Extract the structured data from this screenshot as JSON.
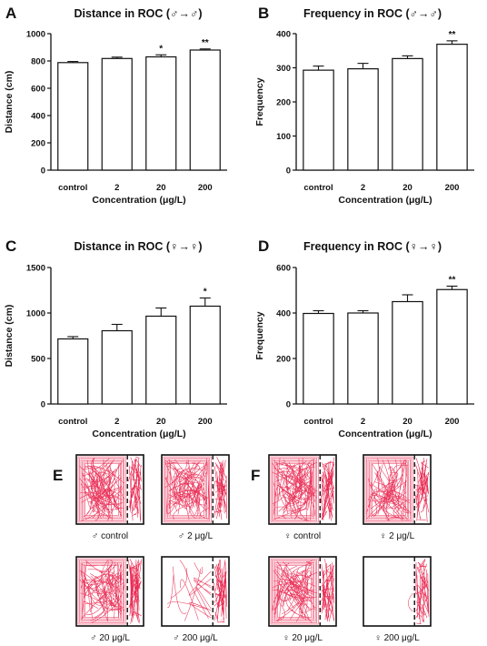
{
  "figure": {
    "panel_labels": [
      "A",
      "B",
      "C",
      "D",
      "E",
      "F"
    ]
  },
  "chart_data": [
    {
      "panel": "A",
      "type": "bar",
      "title": "Distance in ROC (♂→♂)",
      "xlabel": "Concentration (μg/L)",
      "ylabel": "Distance (cm)",
      "categories": [
        "control",
        "2",
        "20",
        "200"
      ],
      "values": [
        788,
        818,
        830,
        880
      ],
      "errors": [
        8,
        10,
        15,
        8
      ],
      "significance": [
        "",
        "",
        "*",
        "**"
      ],
      "ylim": [
        0,
        1000
      ],
      "yticks": [
        0,
        200,
        400,
        600,
        800,
        1000
      ]
    },
    {
      "panel": "B",
      "type": "bar",
      "title": "Frequency in ROC (♂→♂)",
      "xlabel": "Concentration (μg/L)",
      "ylabel": "Frequency",
      "categories": [
        "control",
        "2",
        "20",
        "200"
      ],
      "values": [
        293,
        297,
        327,
        369
      ],
      "errors": [
        12,
        16,
        8,
        10
      ],
      "significance": [
        "",
        "",
        "",
        "**"
      ],
      "ylim": [
        0,
        400
      ],
      "yticks": [
        0,
        100,
        200,
        300,
        400
      ]
    },
    {
      "panel": "C",
      "type": "bar",
      "title": "Distance in ROC (♀→♀)",
      "xlabel": "Concentration (μg/L)",
      "ylabel": "Distance (cm)",
      "categories": [
        "control",
        "2",
        "20",
        "200"
      ],
      "values": [
        715,
        805,
        965,
        1075
      ],
      "errors": [
        25,
        70,
        90,
        90
      ],
      "significance": [
        "",
        "",
        "",
        "*"
      ],
      "ylim": [
        0,
        1500
      ],
      "yticks": [
        0,
        500,
        1000,
        1500
      ]
    },
    {
      "panel": "D",
      "type": "bar",
      "title": "Frequency in ROC (♀→♀)",
      "xlabel": "Concentration (μg/L)",
      "ylabel": "Frequency",
      "categories": [
        "control",
        "2",
        "20",
        "200"
      ],
      "values": [
        398,
        400,
        450,
        503
      ],
      "errors": [
        12,
        10,
        30,
        15
      ],
      "significance": [
        "",
        "",
        "",
        "**"
      ],
      "ylim": [
        0,
        600
      ],
      "yticks": [
        0,
        200,
        400,
        600
      ]
    }
  ],
  "trajectory_panels": {
    "E": {
      "captions": [
        "♂ control",
        "♂ 2 μg/L",
        "♂ 20 μg/L",
        "♂ 200 μg/L"
      ],
      "density": [
        1.0,
        0.9,
        0.8,
        0.12
      ],
      "trace_color": "#e8204a"
    },
    "F": {
      "captions": [
        "♀ control",
        "♀ 2 μg/L",
        "♀ 20 μg/L",
        "♀ 200 μg/L"
      ],
      "density": [
        1.0,
        0.75,
        0.85,
        0.0
      ],
      "trace_color": "#e8204a"
    }
  },
  "colors": {
    "bar_fill": "#ffffff",
    "bar_stroke": "#111111",
    "trace": "#e8204a"
  }
}
